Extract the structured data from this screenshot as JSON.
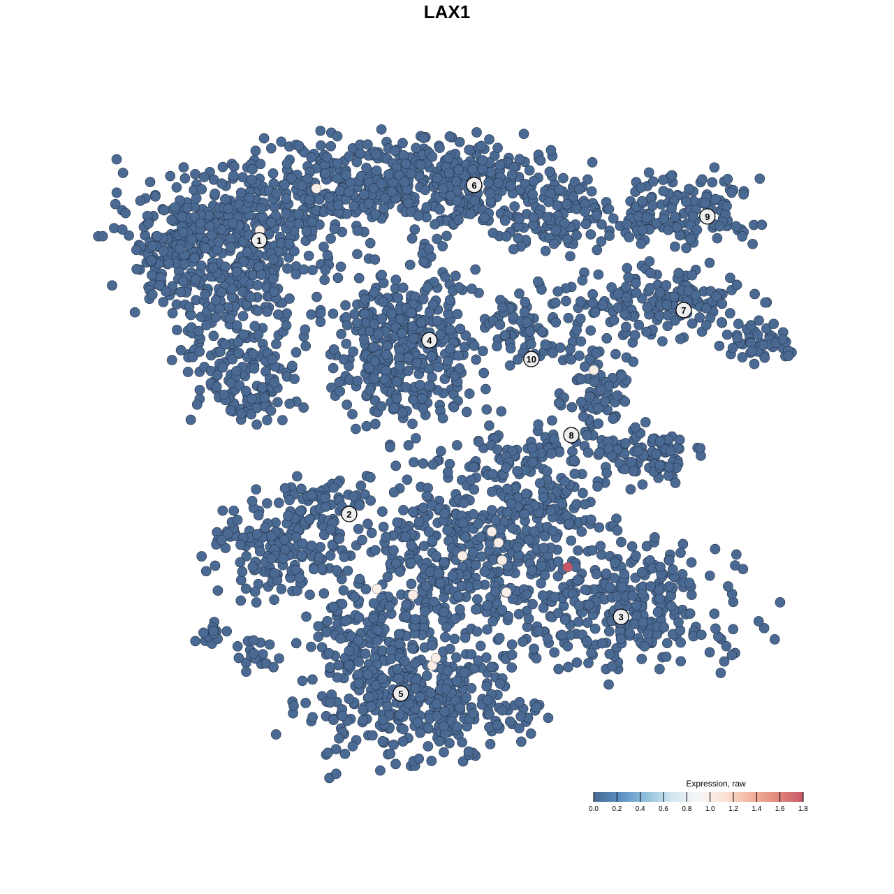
{
  "chart_data": {
    "type": "scatter",
    "title": "LAX1",
    "xlabel": "",
    "ylabel": "",
    "axes_visible": false,
    "grid": false,
    "xlim": [
      -10,
      10
    ],
    "ylim": [
      -10,
      10
    ],
    "default_value": 0.0,
    "cluster_labels": [
      {
        "label": "1",
        "x": -6.32,
        "y": 6.51
      },
      {
        "label": "2",
        "x": -3.55,
        "y": -2.2
      },
      {
        "label": "3",
        "x": 4.82,
        "y": -5.47
      },
      {
        "label": "4",
        "x": -1.08,
        "y": 3.33
      },
      {
        "label": "5",
        "x": -1.96,
        "y": -7.91
      },
      {
        "label": "6",
        "x": 0.3,
        "y": 8.27
      },
      {
        "label": "7",
        "x": 6.75,
        "y": 4.29
      },
      {
        "label": "8",
        "x": 3.29,
        "y": 0.31
      },
      {
        "label": "9",
        "x": 7.48,
        "y": 7.27
      },
      {
        "label": "10",
        "x": 2.06,
        "y": 2.73
      }
    ],
    "expressing_points": [
      {
        "x": -4.56,
        "y": 8.16,
        "value": 1.0
      },
      {
        "x": -6.3,
        "y": 6.82,
        "value": 1.0
      },
      {
        "x": 0.84,
        "y": -2.76,
        "value": 1.0
      },
      {
        "x": 1.05,
        "y": -3.11,
        "value": 1.0
      },
      {
        "x": -0.06,
        "y": -3.53,
        "value": 1.0
      },
      {
        "x": 1.16,
        "y": -3.67,
        "value": 1.0
      },
      {
        "x": -2.69,
        "y": -4.58,
        "value": 1.0
      },
      {
        "x": -1.59,
        "y": -4.78,
        "value": 1.0
      },
      {
        "x": 1.29,
        "y": -4.69,
        "value": 1.0
      },
      {
        "x": -0.99,
        "y": -7.02,
        "value": 1.0
      },
      {
        "x": -0.88,
        "y": -6.78,
        "value": 1.0
      },
      {
        "x": 3.98,
        "y": 2.38,
        "value": 1.0
      },
      {
        "x": 3.18,
        "y": -3.89,
        "value": 1.8
      }
    ],
    "colorbar": {
      "title": "Expression, raw",
      "range": [
        0.0,
        1.8
      ],
      "ticks": [
        "0.0",
        "0.2",
        "0.4",
        "0.6",
        "0.8",
        "1.0",
        "1.2",
        "1.4",
        "1.6",
        "1.8"
      ],
      "colors": [
        "#4a6a94",
        "#5b8fc2",
        "#8fc0dc",
        "#d3e6f0",
        "#f7f7f7",
        "#fbe2d4",
        "#f2b49c",
        "#e08a7c",
        "#c85868"
      ],
      "placement": "bottom-right"
    }
  }
}
